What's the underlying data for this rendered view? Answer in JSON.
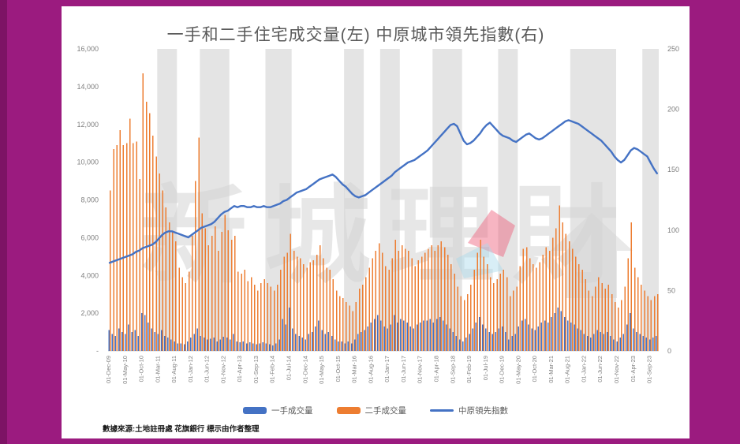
{
  "page": {
    "background_color": "#9B1B7F",
    "edge_strip_color": "#7D1365",
    "panel_color": "#FFFFFF"
  },
  "chart": {
    "title": "一手和二手住宅成交量(左) 中原城市領先指數(右)",
    "title_color": "#595959",
    "source_note": "數據來源:土地註冊處 花旗銀行  標示由作者整理",
    "watermark": {
      "text": "新城理財",
      "house_icon": "house-icon",
      "logo_pink_color": "#EE5B78",
      "logo_blue_color": "#A9D9EA",
      "text_color": "#D4D4D4"
    },
    "legend": [
      {
        "label": "一手成交量",
        "marker": "bar",
        "color": "#4472C4"
      },
      {
        "label": "二手成交量",
        "marker": "bar",
        "color": "#ED7D31"
      },
      {
        "label": "中原領先指數",
        "marker": "line",
        "color": "#4472C4"
      }
    ]
  },
  "chart_data": {
    "type": "bar+line combo, monthly Dec-2009 to Nov-2023",
    "title": "一手和二手住宅成交量(左) 中原城市領先指數(右)",
    "left_axis": {
      "min": 0,
      "max": 16000,
      "step": 2000,
      "tick_labels": [
        "-",
        "2,000",
        "4,000",
        "6,000",
        "8,000",
        "10,000",
        "12,000",
        "14,000",
        "16,000"
      ]
    },
    "right_axis": {
      "min": 0,
      "max": 250,
      "step": 50,
      "tick_labels": [
        "0",
        "50",
        "100",
        "150",
        "200",
        "250"
      ]
    },
    "x_tick_every_n_months": 5,
    "x_tick_labels": [
      "01-Dec-09",
      "01-May-10",
      "01-Oct-10",
      "01-Mar-11",
      "01-Aug-11",
      "01-Jan-12",
      "01-Jun-12",
      "01-Nov-12",
      "01-Apr-13",
      "01-Sep-13",
      "01-Feb-14",
      "01-Jul-14",
      "01-Dec-14",
      "01-May-15",
      "01-Oct-15",
      "01-Mar-16",
      "01-Aug-16",
      "01-Jan-17",
      "01-Jun-17",
      "01-Nov-17",
      "01-Apr-18",
      "01-Sep-18",
      "01-Feb-19",
      "01-Jul-19",
      "01-Dec-19",
      "01-May-20",
      "01-Oct-20",
      "01-Mar-21",
      "01-Aug-21",
      "01-Jan-22",
      "01-Jun-22",
      "01-Nov-22",
      "01-Apr-23",
      "01-Sep-23"
    ],
    "highlight_bands": [
      {
        "from": 15,
        "to": 20
      },
      {
        "from": 28,
        "to": 36
      },
      {
        "from": 48,
        "to": 55
      },
      {
        "from": 72,
        "to": 77
      },
      {
        "from": 83,
        "to": 88
      },
      {
        "from": 99,
        "to": 107
      },
      {
        "from": 119,
        "to": 124
      },
      {
        "from": 141,
        "to": 154
      },
      {
        "from": 163,
        "to": 167
      }
    ],
    "band_color": "#E4E4E4",
    "series": [
      {
        "name": "一手成交量",
        "type": "bar",
        "axis": "left",
        "color": "#4472C4",
        "values": [
          1100,
          900,
          800,
          1200,
          1000,
          900,
          1400,
          1000,
          1100,
          800,
          2000,
          1900,
          1500,
          1200,
          1000,
          900,
          1100,
          800,
          700,
          600,
          500,
          400,
          400,
          350,
          500,
          700,
          900,
          1200,
          800,
          700,
          600,
          650,
          700,
          500,
          600,
          750,
          700,
          600,
          900,
          500,
          450,
          500,
          400,
          450,
          400,
          350,
          400,
          450,
          400,
          350,
          300,
          400,
          600,
          1700,
          1400,
          2300,
          1200,
          900,
          800,
          700,
          600,
          900,
          1000,
          1300,
          1600,
          1100,
          900,
          1000,
          800,
          600,
          500,
          500,
          400,
          500,
          400,
          600,
          900,
          1000,
          1100,
          1300,
          1500,
          1700,
          1900,
          1600,
          1300,
          1200,
          1400,
          1900,
          1500,
          1700,
          1600,
          1500,
          1300,
          1200,
          1400,
          1500,
          1600,
          1600,
          1700,
          1500,
          1700,
          1800,
          1600,
          1400,
          1200,
          1000,
          800,
          600,
          500,
          700,
          900,
          1200,
          1500,
          1800,
          1400,
          1200,
          1000,
          900,
          1000,
          1200,
          1300,
          1000,
          600,
          800,
          900,
          1300,
          1600,
          1700,
          1400,
          1200,
          1100,
          1300,
          1500,
          1600,
          1500,
          1800,
          2000,
          2300,
          2100,
          1800,
          1600,
          1500,
          1400,
          1200,
          1100,
          900,
          800,
          700,
          900,
          1100,
          1000,
          900,
          1000,
          800,
          600,
          500,
          700,
          900,
          1400,
          2000,
          1200,
          1000,
          900,
          800,
          700,
          600,
          700,
          800
        ]
      },
      {
        "name": "二手成交量",
        "type": "bar",
        "axis": "left",
        "color": "#ED7D31",
        "values": [
          8500,
          10700,
          10900,
          11700,
          10900,
          11000,
          12300,
          11000,
          11100,
          9100,
          14700,
          13200,
          12600,
          11400,
          10300,
          9400,
          8500,
          7600,
          6800,
          6300,
          5800,
          4400,
          3900,
          3600,
          4200,
          6100,
          9000,
          11300,
          7300,
          6500,
          5600,
          6100,
          6600,
          5300,
          6300,
          7200,
          6400,
          5900,
          6100,
          4200,
          4100,
          4300,
          3700,
          3900,
          3500,
          3200,
          3600,
          3800,
          3600,
          3400,
          3200,
          3500,
          4300,
          5000,
          5200,
          6200,
          5300,
          5000,
          4900,
          4600,
          4400,
          4700,
          4800,
          5100,
          5600,
          4900,
          4400,
          4300,
          3800,
          3200,
          2900,
          2800,
          2600,
          2400,
          2100,
          2600,
          3300,
          3500,
          3900,
          4400,
          4900,
          5300,
          5700,
          5200,
          4500,
          4300,
          4900,
          5900,
          5300,
          5600,
          5400,
          5300,
          4900,
          4500,
          4800,
          5000,
          5200,
          5400,
          5600,
          5300,
          5600,
          5800,
          5500,
          5100,
          4600,
          4100,
          3400,
          2900,
          2700,
          3000,
          3500,
          4300,
          5200,
          5900,
          5000,
          4600,
          3900,
          3600,
          3800,
          4100,
          4300,
          3900,
          2900,
          3200,
          3400,
          4500,
          5400,
          5500,
          4900,
          4600,
          4400,
          4700,
          5100,
          5500,
          5300,
          6000,
          6500,
          7700,
          6800,
          6200,
          5800,
          5400,
          5000,
          4600,
          4300,
          3800,
          3200,
          2900,
          3400,
          3900,
          3600,
          3300,
          3500,
          3000,
          2600,
          2300,
          2700,
          3400,
          4900,
          6800,
          4400,
          3900,
          3500,
          3200,
          2900,
          2700,
          2900,
          3000
        ]
      },
      {
        "name": "中原領先指數",
        "type": "line",
        "axis": "right",
        "color": "#4472C4",
        "values": [
          73,
          74,
          75,
          76,
          77,
          78,
          79,
          80,
          82,
          83,
          85,
          86,
          87,
          88,
          90,
          93,
          96,
          98,
          99,
          99,
          98,
          97,
          96,
          95,
          94,
          96,
          98,
          100,
          102,
          103,
          104,
          105,
          107,
          110,
          113,
          115,
          116,
          118,
          120,
          119,
          120,
          120,
          119,
          119,
          120,
          119,
          119,
          120,
          119,
          119,
          120,
          121,
          122,
          124,
          125,
          127,
          129,
          131,
          132,
          133,
          134,
          136,
          138,
          140,
          142,
          143,
          144,
          145,
          146,
          144,
          141,
          138,
          136,
          133,
          130,
          128,
          127,
          128,
          129,
          131,
          133,
          135,
          137,
          139,
          141,
          143,
          145,
          148,
          150,
          152,
          154,
          156,
          157,
          158,
          160,
          162,
          164,
          166,
          169,
          172,
          175,
          178,
          181,
          184,
          187,
          188,
          186,
          180,
          174,
          171,
          172,
          174,
          177,
          180,
          184,
          187,
          189,
          186,
          183,
          180,
          178,
          177,
          176,
          174,
          173,
          175,
          177,
          179,
          180,
          178,
          176,
          175,
          176,
          178,
          180,
          182,
          184,
          186,
          188,
          190,
          191,
          190,
          189,
          188,
          186,
          184,
          182,
          180,
          178,
          176,
          174,
          171,
          168,
          165,
          161,
          158,
          156,
          158,
          162,
          166,
          168,
          167,
          165,
          163,
          161,
          156,
          151,
          147
        ]
      }
    ]
  }
}
